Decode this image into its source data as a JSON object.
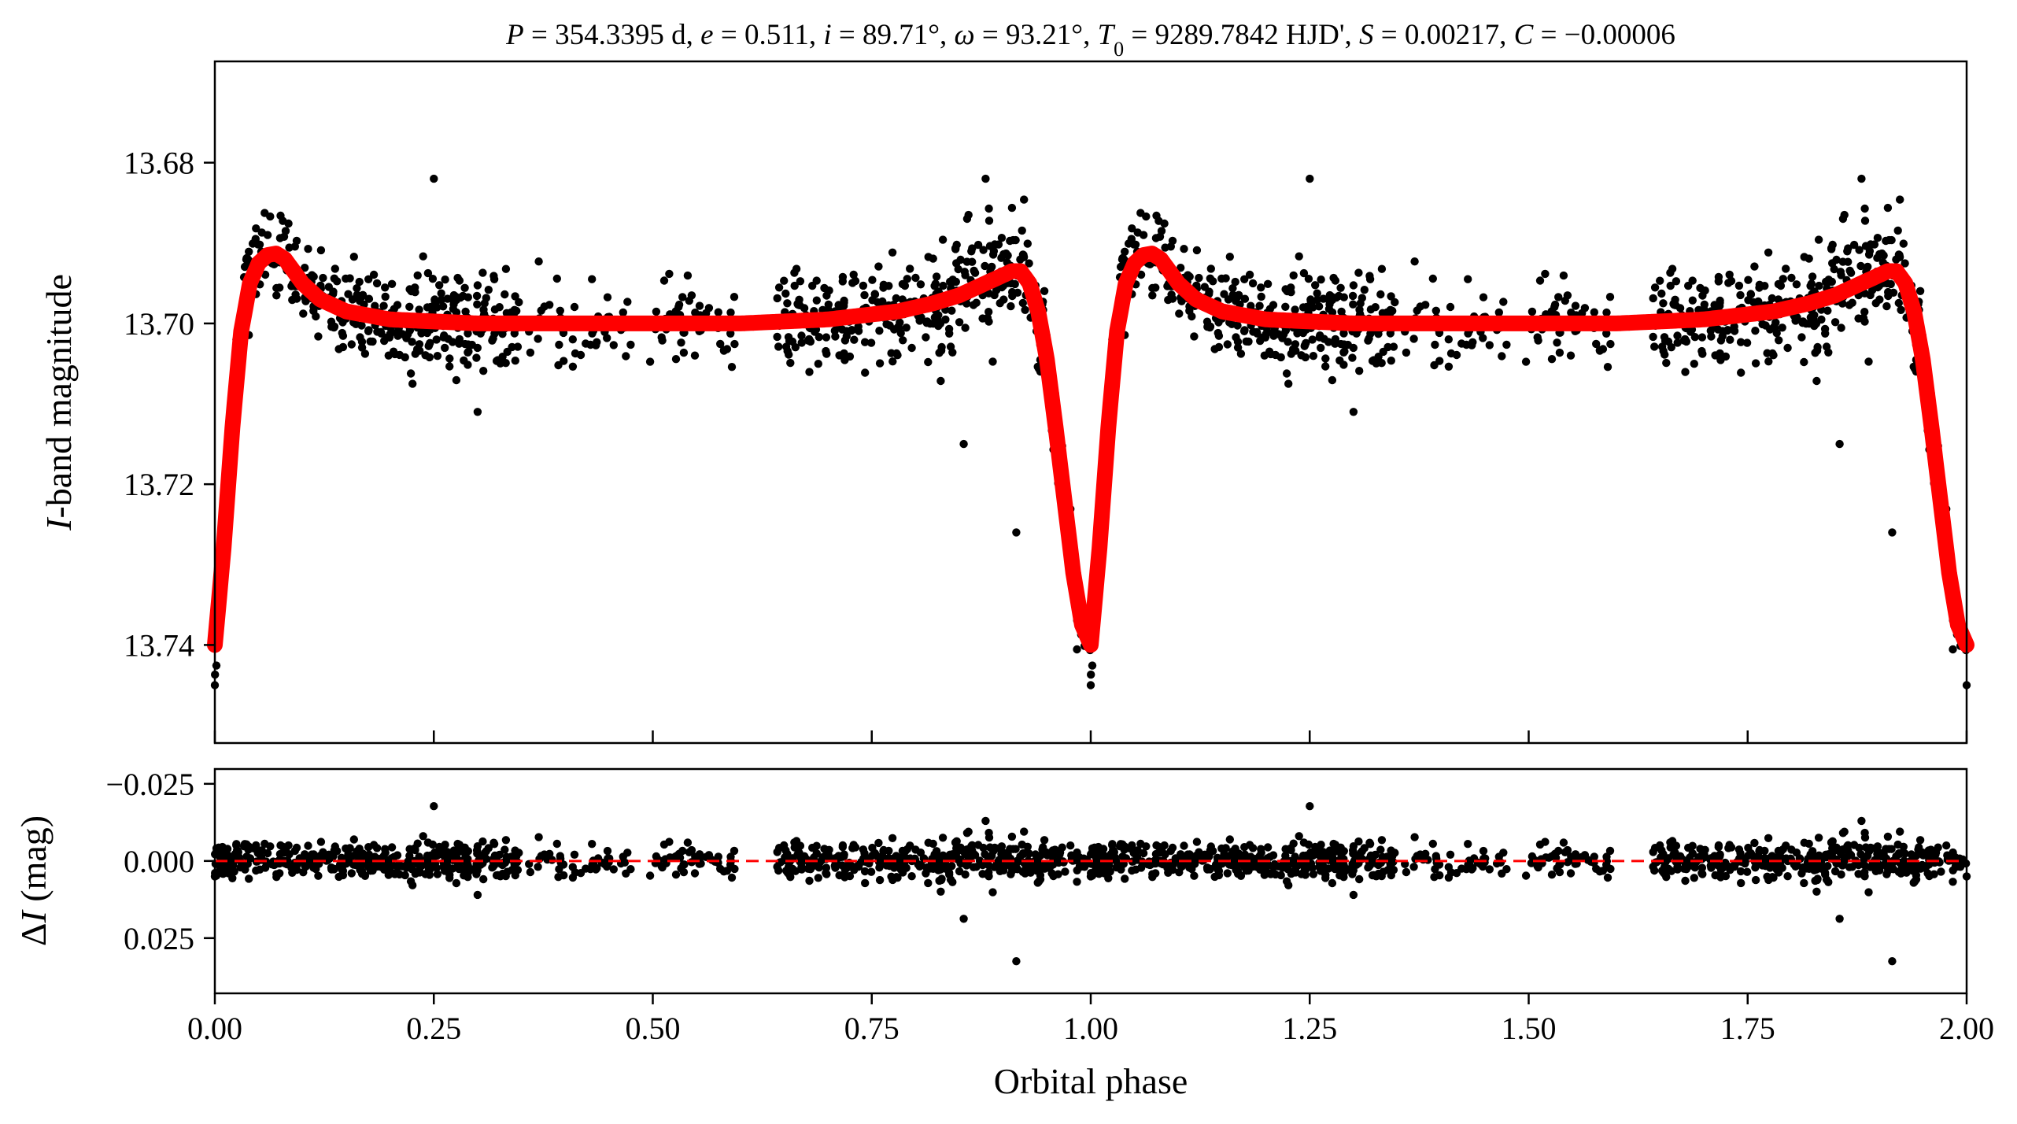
{
  "chart_data": [
    {
      "type": "scatter",
      "panel": "light curve",
      "title_parts": {
        "P": "P",
        "P_val": " = 354.3395 d, ",
        "e": "e",
        "e_val": " = 0.511, ",
        "i": "i",
        "i_val": " = 89.71°, ",
        "omega": "ω",
        "omega_val": " = 93.21°, ",
        "T": "T",
        "T_sub": "0",
        "T_val": " = 9289.7842 HJD', ",
        "S": "S",
        "S_val": " = 0.00217, ",
        "C": "C",
        "C_val": " = −0.00006"
      },
      "ylabel_italic": "I",
      "ylabel_rest": "-band magnitude",
      "xlim": [
        0.0,
        2.0
      ],
      "ylim": [
        13.6674,
        13.7522
      ],
      "y_inverted": true,
      "yticks": [
        "13.68",
        "13.70",
        "13.72",
        "13.74"
      ],
      "xticks": [
        0.0,
        0.25,
        0.5,
        0.75,
        1.0,
        1.25,
        1.5,
        1.75,
        2.0
      ],
      "grid": false,
      "model_color": "#ff0000",
      "point_color": "#000000",
      "model_curve": {
        "phase": [
          0.0,
          0.01,
          0.02,
          0.03,
          0.04,
          0.05,
          0.06,
          0.07,
          0.08,
          0.09,
          0.1,
          0.12,
          0.15,
          0.2,
          0.3,
          0.4,
          0.5,
          0.6,
          0.7,
          0.78,
          0.82,
          0.85,
          0.87,
          0.89,
          0.9,
          0.91,
          0.92,
          0.93,
          0.94,
          0.95,
          0.96,
          0.97,
          0.98,
          0.99,
          1.0,
          1.01,
          1.02,
          1.03,
          1.04,
          1.05,
          1.06,
          1.07,
          1.08,
          1.09,
          1.1,
          1.12,
          1.15,
          1.2,
          1.3,
          1.4,
          1.5,
          1.6,
          1.7,
          1.78,
          1.82,
          1.85,
          1.87,
          1.89,
          1.9,
          1.91,
          1.92,
          1.93,
          1.94,
          1.95,
          1.96,
          1.97,
          1.98,
          1.99,
          2.0
        ],
        "mag": [
          13.74,
          13.728,
          13.713,
          13.701,
          13.695,
          13.6925,
          13.6915,
          13.6913,
          13.692,
          13.6935,
          13.695,
          13.697,
          13.6985,
          13.6995,
          13.7,
          13.7,
          13.7,
          13.7,
          13.6995,
          13.6985,
          13.6975,
          13.6965,
          13.6955,
          13.6945,
          13.694,
          13.6935,
          13.6935,
          13.695,
          13.6985,
          13.7045,
          13.713,
          13.722,
          13.731,
          13.7375,
          13.74,
          13.728,
          13.713,
          13.701,
          13.695,
          13.6925,
          13.6915,
          13.6913,
          13.692,
          13.6935,
          13.695,
          13.697,
          13.6985,
          13.6995,
          13.7,
          13.7,
          13.7,
          13.7,
          13.6995,
          13.6985,
          13.6975,
          13.6965,
          13.6955,
          13.6945,
          13.694,
          13.6935,
          13.6935,
          13.695,
          13.6985,
          13.7045,
          13.713,
          13.722,
          13.731,
          13.7375,
          13.74
        ]
      },
      "notable_points": [
        {
          "phase": 0.25,
          "mag": 13.682
        },
        {
          "phase": 1.25,
          "mag": 13.682
        },
        {
          "phase": 0.88,
          "mag": 13.682
        },
        {
          "phase": 1.88,
          "mag": 13.682
        },
        {
          "phase": 0.915,
          "mag": 13.726
        },
        {
          "phase": 1.915,
          "mag": 13.726
        },
        {
          "phase": 0.855,
          "mag": 13.715
        },
        {
          "phase": 1.855,
          "mag": 13.715
        },
        {
          "phase": 0.3,
          "mag": 13.711
        },
        {
          "phase": 1.3,
          "mag": 13.711
        },
        {
          "phase": 0.0,
          "mag": 13.745
        },
        {
          "phase": 1.0,
          "mag": 13.746
        },
        {
          "phase": 2.0,
          "mag": 13.745
        }
      ],
      "data_gaps_phase": [
        [
          0.6,
          0.64
        ],
        [
          1.6,
          1.64
        ]
      ]
    },
    {
      "type": "scatter",
      "panel": "residuals",
      "ylabel_prefix": "Δ",
      "ylabel_italic": "I",
      "ylabel_rest": " (mag)",
      "xlabel": "Orbital phase",
      "xlim": [
        0.0,
        2.0
      ],
      "ylim": [
        -0.0298,
        0.0429
      ],
      "y_inverted": true,
      "yticks": [
        "−0.025",
        "0.000",
        "0.025"
      ],
      "xticks": [
        "0.00",
        "0.25",
        "0.50",
        "0.75",
        "1.00",
        "1.25",
        "1.50",
        "1.75",
        "2.00"
      ],
      "grid": false,
      "reference_line": {
        "value": 0.0,
        "style": "dashed",
        "color": "#ff0000"
      },
      "notable_points": [
        {
          "phase": 0.25,
          "residual": -0.018
        },
        {
          "phase": 1.25,
          "residual": -0.018
        },
        {
          "phase": 0.855,
          "residual": 0.018
        },
        {
          "phase": 1.855,
          "residual": 0.018
        },
        {
          "phase": 0.915,
          "residual": 0.033
        },
        {
          "phase": 1.915,
          "residual": 0.033
        }
      ]
    }
  ]
}
